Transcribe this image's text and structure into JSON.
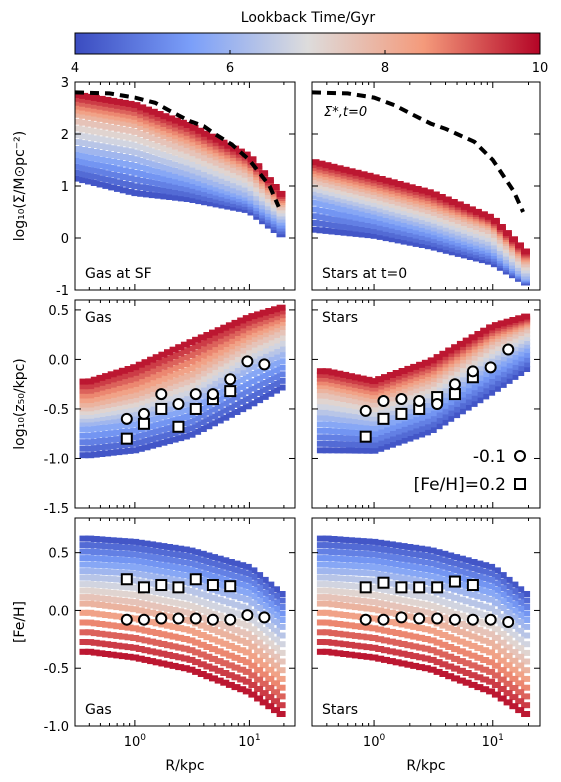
{
  "colorbar": {
    "label": "Lookback Time/Gyr",
    "ticks": [
      4,
      6,
      8,
      10
    ],
    "range": [
      4,
      10
    ],
    "colormap": "coolwarm"
  },
  "chart_data": [
    {
      "type": "heatmap",
      "panel": "top-left",
      "annotation": "Gas at SF",
      "ylabel": "log₁₀(Σ/M⊙pc⁻²)",
      "xscale": "log",
      "xlim": [
        0.3,
        25
      ],
      "ylim": [
        -1,
        3
      ],
      "yticks": [
        -1,
        0,
        1,
        2,
        3
      ],
      "reference_curve": {
        "style": "dashed-black",
        "x": [
          0.3,
          0.6,
          1.0,
          1.5,
          2.0,
          3.0,
          4.0,
          5.0,
          7.0,
          10.0,
          15.0,
          18.0
        ],
        "y": [
          2.8,
          2.78,
          2.7,
          2.6,
          2.45,
          2.25,
          2.15,
          2.0,
          1.8,
          1.5,
          1.0,
          0.6
        ]
      },
      "bands": [
        {
          "lookback_gyr": 4.0,
          "x": [
            0.3,
            1,
            3,
            10,
            20
          ],
          "y": [
            1.1,
            0.8,
            0.7,
            0.5,
            0.0
          ]
        },
        {
          "lookback_gyr": 6.0,
          "x": [
            0.3,
            1,
            3,
            10,
            20
          ],
          "y": [
            1.7,
            1.5,
            1.2,
            0.8,
            0.3
          ]
        },
        {
          "lookback_gyr": 8.0,
          "x": [
            0.3,
            1,
            3,
            10,
            20
          ],
          "y": [
            2.4,
            2.2,
            1.8,
            1.3,
            0.6
          ]
        },
        {
          "lookback_gyr": 10.0,
          "x": [
            0.3,
            1,
            3,
            10,
            20
          ],
          "y": [
            2.8,
            2.6,
            2.2,
            1.6,
            0.8
          ]
        }
      ]
    },
    {
      "type": "heatmap",
      "panel": "top-right",
      "annotation": "Stars at t=0",
      "legend_label": "Σ*,t=0",
      "xscale": "log",
      "xlim": [
        0.3,
        25
      ],
      "ylim": [
        -1,
        3
      ],
      "reference_curve": {
        "style": "dashed-black",
        "x": [
          0.3,
          0.6,
          1.0,
          1.5,
          2.0,
          3.0,
          4.0,
          5.0,
          7.0,
          10.0,
          15.0,
          18.0
        ],
        "y": [
          2.8,
          2.78,
          2.7,
          2.55,
          2.4,
          2.2,
          2.1,
          2.0,
          1.85,
          1.5,
          0.9,
          0.5
        ]
      },
      "bands": [
        {
          "lookback_gyr": 4.0,
          "x": [
            0.3,
            1,
            3,
            10,
            20
          ],
          "y": [
            0.1,
            0.0,
            -0.2,
            -0.5,
            -0.9
          ]
        },
        {
          "lookback_gyr": 6.0,
          "x": [
            0.3,
            1,
            3,
            10,
            20
          ],
          "y": [
            0.8,
            0.5,
            0.2,
            -0.2,
            -0.8
          ]
        },
        {
          "lookback_gyr": 8.0,
          "x": [
            0.3,
            1,
            3,
            10,
            20
          ],
          "y": [
            1.2,
            0.9,
            0.6,
            0.2,
            -0.5
          ]
        },
        {
          "lookback_gyr": 10.0,
          "x": [
            0.3,
            1,
            3,
            10,
            20
          ],
          "y": [
            1.5,
            1.2,
            0.9,
            0.4,
            -0.3
          ]
        }
      ]
    },
    {
      "type": "heatmap",
      "panel": "middle-left",
      "annotation": "Gas",
      "ylabel": "log₁₀(z₅₀/kpc)",
      "xscale": "log",
      "xlim": [
        0.3,
        25
      ],
      "ylim": [
        -1.5,
        0.6
      ],
      "yticks": [
        -1.5,
        -1.0,
        -0.5,
        0.0,
        0.5
      ],
      "bands": [
        {
          "lookback_gyr": 4.0,
          "x": [
            0.4,
            1,
            3,
            10,
            20
          ],
          "y": [
            -1.0,
            -0.95,
            -0.8,
            -0.5,
            -0.3
          ]
        },
        {
          "lookback_gyr": 6.0,
          "x": [
            0.4,
            1,
            3,
            10,
            20
          ],
          "y": [
            -0.65,
            -0.6,
            -0.45,
            -0.1,
            0.05
          ]
        },
        {
          "lookback_gyr": 8.0,
          "x": [
            0.4,
            1,
            3,
            10,
            20
          ],
          "y": [
            -0.45,
            -0.35,
            -0.15,
            0.2,
            0.35
          ]
        },
        {
          "lookback_gyr": 10.0,
          "x": [
            0.4,
            1,
            3,
            10,
            20
          ],
          "y": [
            -0.2,
            -0.05,
            0.2,
            0.45,
            0.55
          ]
        }
      ],
      "points": {
        "circle": {
          "x": [
            0.85,
            1.2,
            1.7,
            2.4,
            3.4,
            4.8,
            6.8,
            9.6,
            13.5
          ],
          "y": [
            -0.6,
            -0.55,
            -0.35,
            -0.45,
            -0.35,
            -0.35,
            -0.2,
            -0.02,
            -0.05
          ]
        },
        "square": {
          "x": [
            0.85,
            1.2,
            1.7,
            2.4,
            3.4,
            4.8,
            6.8
          ],
          "y": [
            -0.8,
            -0.65,
            -0.5,
            -0.68,
            -0.5,
            -0.4,
            -0.32
          ]
        }
      }
    },
    {
      "type": "heatmap",
      "panel": "middle-right",
      "annotation": "Stars",
      "xscale": "log",
      "xlim": [
        0.3,
        25
      ],
      "ylim": [
        -1.5,
        0.6
      ],
      "legend": [
        {
          "label": "-0.1",
          "marker": "circle"
        },
        {
          "label": "[Fe/H]=0.2",
          "marker": "square"
        }
      ],
      "bands": [
        {
          "lookback_gyr": 4.0,
          "x": [
            0.4,
            1,
            3,
            10,
            20
          ],
          "y": [
            -0.95,
            -0.95,
            -0.75,
            -0.35,
            -0.1
          ]
        },
        {
          "lookback_gyr": 6.0,
          "x": [
            0.4,
            1,
            3,
            10,
            20
          ],
          "y": [
            -0.6,
            -0.65,
            -0.45,
            -0.05,
            0.15
          ]
        },
        {
          "lookback_gyr": 8.0,
          "x": [
            0.4,
            1,
            3,
            10,
            20
          ],
          "y": [
            -0.3,
            -0.4,
            -0.2,
            0.2,
            0.35
          ]
        },
        {
          "lookback_gyr": 10.0,
          "x": [
            0.4,
            1,
            3,
            10,
            20
          ],
          "y": [
            -0.1,
            -0.2,
            0.0,
            0.35,
            0.45
          ]
        }
      ],
      "points": {
        "circle": {
          "x": [
            0.85,
            1.2,
            1.7,
            2.4,
            3.4,
            4.8,
            6.8,
            9.6,
            13.5
          ],
          "y": [
            -0.52,
            -0.42,
            -0.4,
            -0.42,
            -0.45,
            -0.25,
            -0.12,
            -0.08,
            0.1
          ]
        },
        "square": {
          "x": [
            0.85,
            1.2,
            1.7,
            2.4,
            3.4,
            4.8,
            6.8
          ],
          "y": [
            -0.78,
            -0.6,
            -0.55,
            -0.5,
            -0.38,
            -0.35,
            -0.18
          ]
        }
      }
    },
    {
      "type": "heatmap",
      "panel": "bottom-left",
      "annotation": "Gas",
      "xlabel": "R/kpc",
      "ylabel": "[Fe/H]",
      "xscale": "log",
      "xlim": [
        0.3,
        25
      ],
      "ylim": [
        -1.0,
        0.8
      ],
      "xticks": [
        1,
        10
      ],
      "yticks": [
        -1.0,
        -0.5,
        0.0,
        0.5
      ],
      "bands": [
        {
          "lookback_gyr": 4.0,
          "x": [
            0.4,
            1,
            3,
            10,
            20
          ],
          "y": [
            0.65,
            0.62,
            0.55,
            0.4,
            0.15
          ]
        },
        {
          "lookback_gyr": 6.0,
          "x": [
            0.4,
            1,
            3,
            10,
            20
          ],
          "y": [
            0.35,
            0.33,
            0.25,
            0.1,
            -0.15
          ]
        },
        {
          "lookback_gyr": 8.0,
          "x": [
            0.4,
            1,
            3,
            10,
            20
          ],
          "y": [
            0.05,
            0.0,
            -0.1,
            -0.3,
            -0.55
          ]
        },
        {
          "lookback_gyr": 10.0,
          "x": [
            0.4,
            1,
            3,
            10,
            20
          ],
          "y": [
            -0.4,
            -0.45,
            -0.55,
            -0.75,
            -0.95
          ]
        }
      ],
      "points": {
        "circle": {
          "x": [
            0.85,
            1.2,
            1.7,
            2.4,
            3.4,
            4.8,
            6.8,
            9.6,
            13.5
          ],
          "y": [
            -0.08,
            -0.08,
            -0.07,
            -0.07,
            -0.07,
            -0.08,
            -0.08,
            -0.04,
            -0.06
          ]
        },
        "square": {
          "x": [
            0.85,
            1.2,
            1.7,
            2.4,
            3.4,
            4.8,
            6.8
          ],
          "y": [
            0.27,
            0.2,
            0.22,
            0.2,
            0.27,
            0.22,
            0.21
          ]
        }
      }
    },
    {
      "type": "heatmap",
      "panel": "bottom-right",
      "annotation": "Stars",
      "xlabel": "R/kpc",
      "xscale": "log",
      "xlim": [
        0.3,
        25
      ],
      "ylim": [
        -1.0,
        0.8
      ],
      "xticks": [
        1,
        10
      ],
      "bands": [
        {
          "lookback_gyr": 4.0,
          "x": [
            0.4,
            1,
            3,
            10,
            20
          ],
          "y": [
            0.65,
            0.62,
            0.55,
            0.4,
            0.15
          ]
        },
        {
          "lookback_gyr": 6.0,
          "x": [
            0.4,
            1,
            3,
            10,
            20
          ],
          "y": [
            0.35,
            0.33,
            0.25,
            0.1,
            -0.15
          ]
        },
        {
          "lookback_gyr": 8.0,
          "x": [
            0.4,
            1,
            3,
            10,
            20
          ],
          "y": [
            0.05,
            0.0,
            -0.1,
            -0.3,
            -0.55
          ]
        },
        {
          "lookback_gyr": 10.0,
          "x": [
            0.4,
            1,
            3,
            10,
            20
          ],
          "y": [
            -0.4,
            -0.45,
            -0.55,
            -0.75,
            -0.95
          ]
        }
      ],
      "points": {
        "circle": {
          "x": [
            0.85,
            1.2,
            1.7,
            2.4,
            3.4,
            4.8,
            6.8,
            9.6,
            13.5
          ],
          "y": [
            -0.08,
            -0.08,
            -0.06,
            -0.07,
            -0.07,
            -0.08,
            -0.08,
            -0.08,
            -0.1
          ]
        },
        "square": {
          "x": [
            0.85,
            1.2,
            1.7,
            2.4,
            3.4,
            4.8,
            6.8
          ],
          "y": [
            0.2,
            0.24,
            0.2,
            0.2,
            0.2,
            0.25,
            0.22
          ]
        }
      }
    }
  ]
}
